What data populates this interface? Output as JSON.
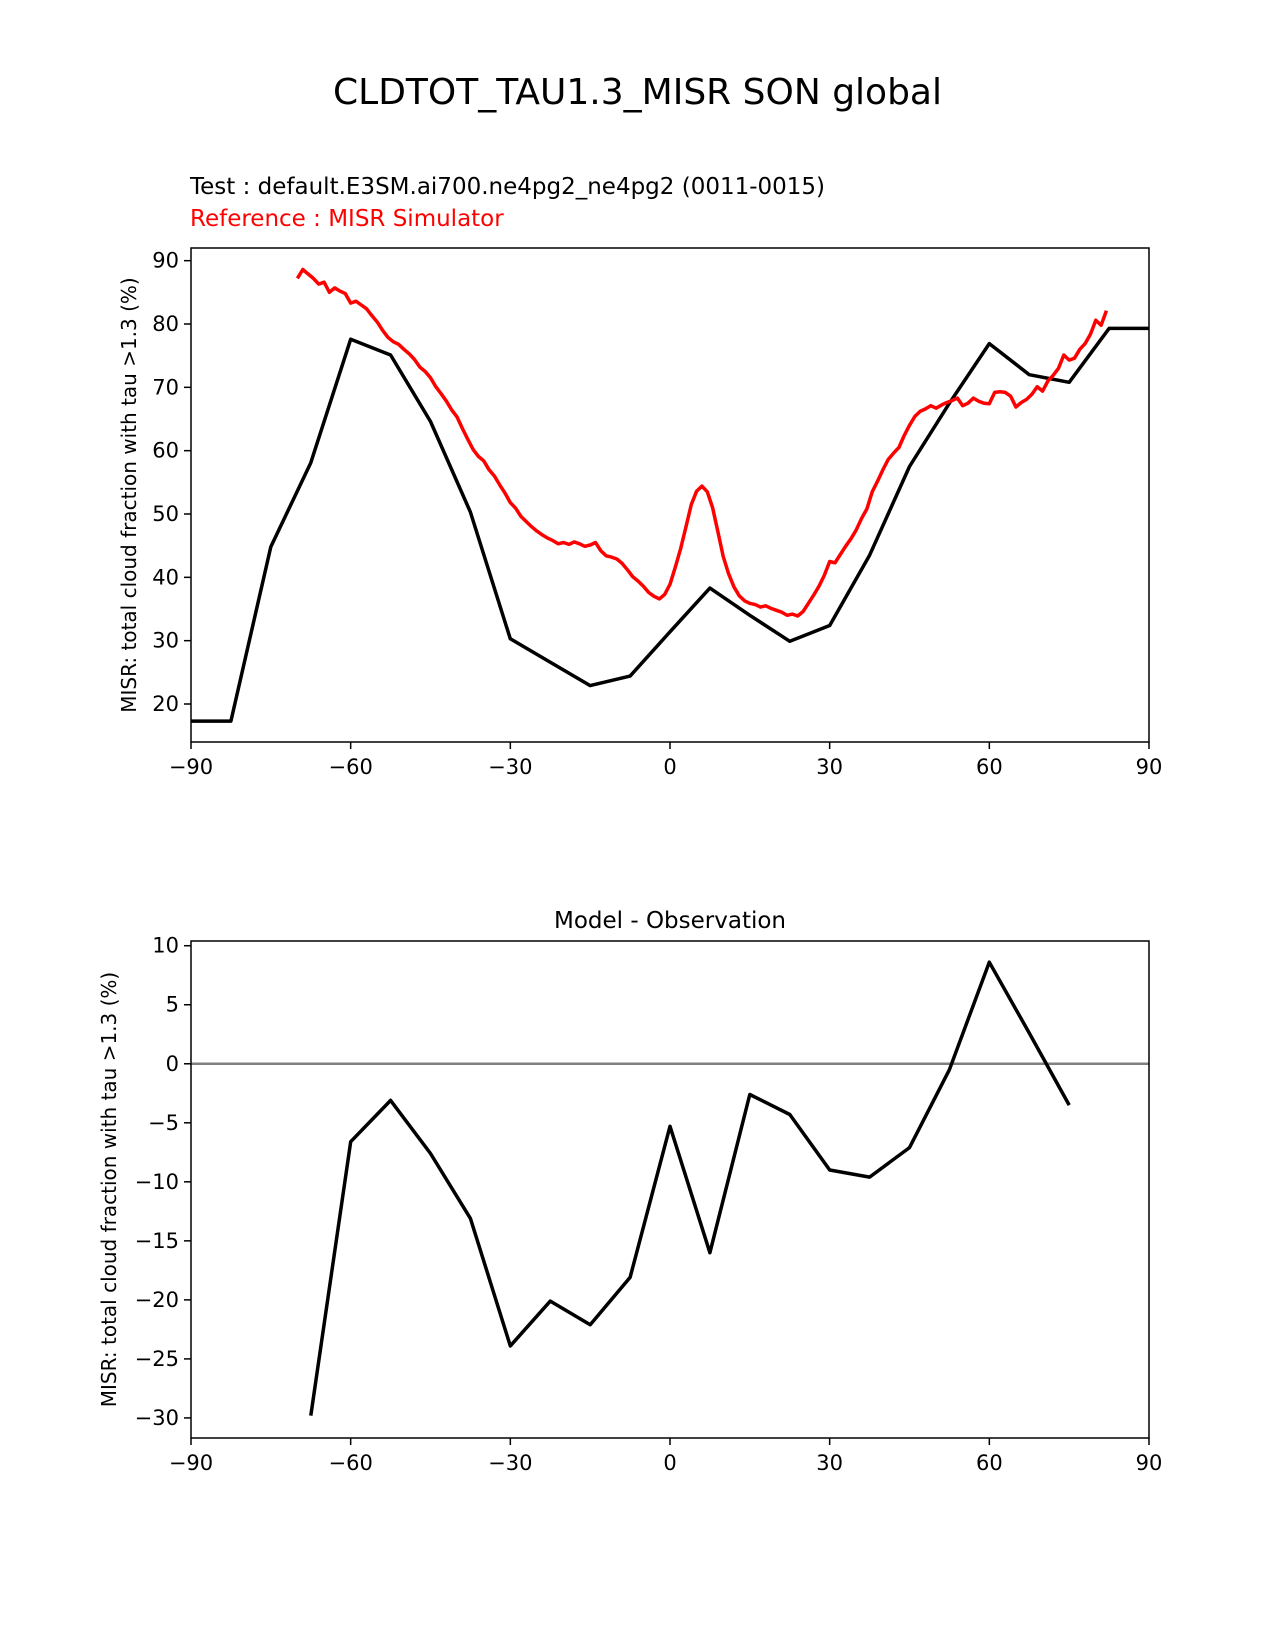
{
  "title": "CLDTOT_TAU1.3_MISR SON global",
  "chart_data": [
    {
      "type": "line",
      "test_label": "Test : default.E3SM.ai700.ne4pg2_ne4pg2 (0011-0015)",
      "reference_label": "Reference : MISR Simulator",
      "ylabel": "MISR: total cloud fraction with tau >1.3 (%)",
      "xlim": [
        -90,
        90
      ],
      "ylim": [
        14.0,
        92.0
      ],
      "xticks": [
        "−90",
        "−60",
        "−30",
        "0",
        "30",
        "60",
        "90"
      ],
      "yticks": [
        "20",
        "30",
        "40",
        "50",
        "60",
        "70",
        "80",
        "90"
      ],
      "series": [
        {
          "role": "test",
          "color": "#000000",
          "x": [
            -90,
            -82.5,
            -75,
            -67.5,
            -60,
            -52.5,
            -45,
            -37.5,
            -30,
            -22.5,
            -15,
            -7.5,
            0,
            7.5,
            15,
            22.5,
            30,
            37.5,
            45,
            52.5,
            60,
            67.5,
            75,
            82.5,
            90
          ],
          "y": [
            17.3,
            17.3,
            44.8,
            58.1,
            77.6,
            75.1,
            64.6,
            50.3,
            30.3,
            26.6,
            22.9,
            24.4,
            31.4,
            38.3,
            34.0,
            29.9,
            32.4,
            43.5,
            57.5,
            67.5,
            76.9,
            72.0,
            70.8,
            79.3,
            79.3
          ]
        },
        {
          "role": "reference",
          "color": "#ff0000",
          "x": [
            -70,
            -69,
            -68,
            -67,
            -66,
            -65,
            -64,
            -63,
            -62,
            -61,
            -60,
            -59,
            -58,
            -57,
            -56,
            -55,
            -54,
            -53,
            -52,
            -51,
            -50,
            -49,
            -48,
            -47,
            -46,
            -45,
            -44,
            -43,
            -42,
            -41,
            -40,
            -39,
            -38,
            -37,
            -36,
            -35,
            -34,
            -33,
            -32,
            -31,
            -30,
            -29,
            -28,
            -27,
            -26,
            -25,
            -24,
            -23,
            -22,
            -21,
            -20,
            -19,
            -18,
            -17,
            -16,
            -15,
            -14,
            -13,
            -12,
            -11,
            -10,
            -9,
            -8,
            -7,
            -6,
            -5,
            -4,
            -3,
            -2,
            -1,
            0,
            1,
            2,
            3,
            4,
            5,
            6,
            7,
            8,
            9,
            10,
            11,
            12,
            13,
            14,
            15,
            16,
            17,
            18,
            19,
            20,
            21,
            22,
            23,
            24,
            25,
            26,
            27,
            28,
            29,
            30,
            31,
            32,
            33,
            34,
            35,
            36,
            37,
            38,
            39,
            40,
            41,
            42,
            43,
            44,
            45,
            46,
            47,
            48,
            49,
            50,
            51,
            52,
            53,
            54,
            55,
            56,
            57,
            58,
            59,
            60,
            61,
            62,
            63,
            64,
            65,
            66,
            67,
            68,
            69,
            70,
            71,
            72,
            73,
            74,
            75,
            76,
            77,
            78,
            79,
            80,
            81,
            82
          ],
          "y": [
            87.2,
            88.6,
            87.9,
            87.2,
            86.3,
            86.6,
            85.0,
            85.7,
            85.2,
            84.8,
            83.3,
            83.6,
            83.0,
            82.4,
            81.3,
            80.3,
            79.0,
            77.9,
            77.2,
            76.8,
            76.0,
            75.3,
            74.4,
            73.2,
            72.5,
            71.5,
            70.1,
            69.0,
            67.8,
            66.4,
            65.3,
            63.5,
            61.8,
            60.2,
            59.1,
            58.4,
            57.0,
            56.0,
            54.6,
            53.3,
            51.8,
            50.9,
            49.6,
            48.8,
            48.0,
            47.3,
            46.7,
            46.2,
            45.8,
            45.3,
            45.5,
            45.2,
            45.6,
            45.3,
            44.9,
            45.1,
            45.5,
            44.2,
            43.4,
            43.2,
            42.9,
            42.2,
            41.2,
            40.1,
            39.4,
            38.6,
            37.6,
            37.0,
            36.6,
            37.3,
            38.9,
            41.6,
            44.5,
            48.0,
            51.5,
            53.6,
            54.4,
            53.5,
            51.0,
            47.2,
            43.3,
            40.6,
            38.5,
            37.1,
            36.3,
            35.9,
            35.7,
            35.3,
            35.5,
            35.1,
            34.8,
            34.5,
            34.0,
            34.2,
            33.9,
            34.6,
            35.9,
            37.2,
            38.6,
            40.3,
            42.5,
            42.3,
            43.6,
            44.9,
            46.1,
            47.5,
            49.3,
            50.8,
            53.5,
            55.2,
            57.0,
            58.6,
            59.6,
            60.5,
            62.4,
            64.0,
            65.4,
            66.2,
            66.6,
            67.1,
            66.7,
            67.2,
            67.6,
            67.9,
            68.3,
            67.1,
            67.5,
            68.3,
            67.8,
            67.5,
            67.4,
            69.2,
            69.3,
            69.2,
            68.6,
            66.9,
            67.6,
            68.1,
            68.9,
            70.1,
            69.4,
            71.0,
            71.9,
            73.0,
            75.1,
            74.3,
            74.6,
            76.0,
            76.9,
            78.4,
            80.6,
            79.8,
            82.1
          ]
        }
      ]
    },
    {
      "type": "line",
      "title": "Model - Observation",
      "ylabel": "MISR: total cloud fraction with tau >1.3 (%)",
      "xlim": [
        -90,
        90
      ],
      "ylim": [
        -31.7,
        10.4
      ],
      "xticks": [
        "−90",
        "−60",
        "−30",
        "0",
        "30",
        "60",
        "90"
      ],
      "yticks": [
        "10",
        "5",
        "0",
        "−5",
        "−10",
        "−15",
        "−20",
        "−25",
        "−30"
      ],
      "zero_line_color": "#808080",
      "series": [
        {
          "role": "difference",
          "color": "#000000",
          "x": [
            -67.5,
            -60,
            -52.5,
            -45,
            -37.5,
            -30,
            -22.5,
            -15,
            -7.5,
            0,
            7.5,
            15,
            22.5,
            30,
            37.5,
            45,
            52.5,
            60,
            67.5,
            75
          ],
          "y": [
            -29.8,
            -6.6,
            -3.1,
            -7.6,
            -13.1,
            -23.9,
            -20.1,
            -22.1,
            -18.1,
            -5.3,
            -16.0,
            -2.6,
            -4.3,
            -9.0,
            -9.6,
            -7.1,
            -0.5,
            8.6,
            2.6,
            -3.5
          ]
        }
      ]
    }
  ]
}
